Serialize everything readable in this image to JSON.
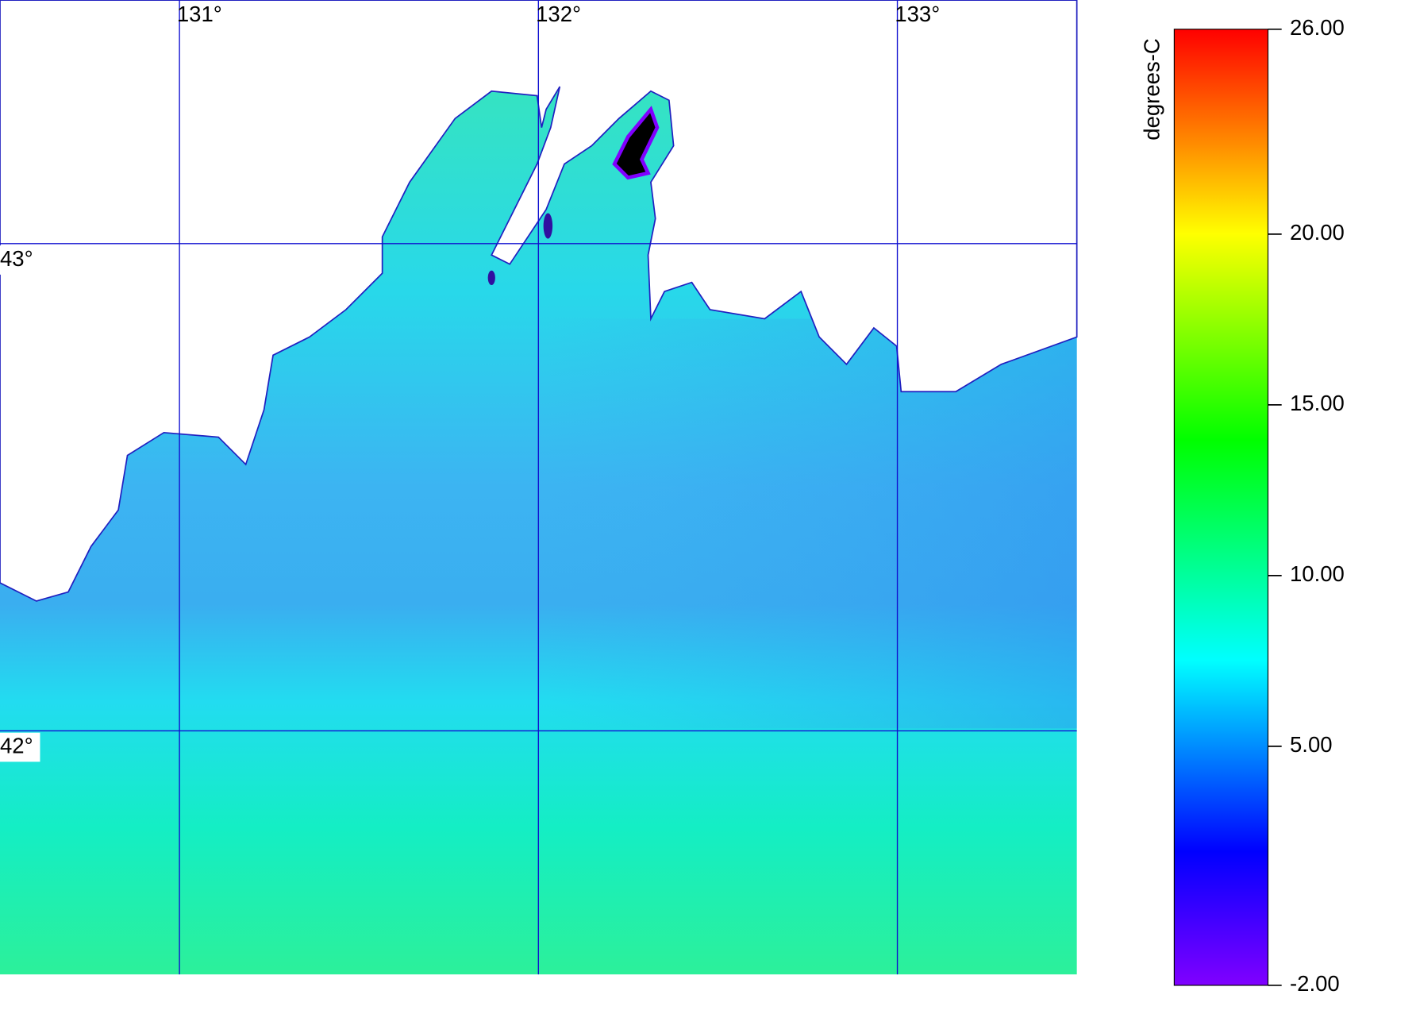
{
  "map": {
    "lon_range": [
      130.5,
      133.5
    ],
    "lat_range": [
      41.5,
      43.5
    ],
    "lon_ticks": [
      {
        "value": 131,
        "label": "131°"
      },
      {
        "value": 132,
        "label": "132°"
      },
      {
        "value": 133,
        "label": "133°"
      }
    ],
    "lat_ticks": [
      {
        "value": 43,
        "label": "43°"
      },
      {
        "value": 42,
        "label": "42°"
      }
    ]
  },
  "colorbar": {
    "unit": "degrees-C",
    "range": [
      -2,
      26
    ],
    "ticks": [
      {
        "value": -2,
        "label": "-2.00"
      },
      {
        "value": 5,
        "label": "5.00"
      },
      {
        "value": 10,
        "label": "10.00"
      },
      {
        "value": 15,
        "label": "15.00"
      },
      {
        "value": 20,
        "label": "20.00"
      },
      {
        "value": 26,
        "label": "26.00"
      }
    ]
  }
}
